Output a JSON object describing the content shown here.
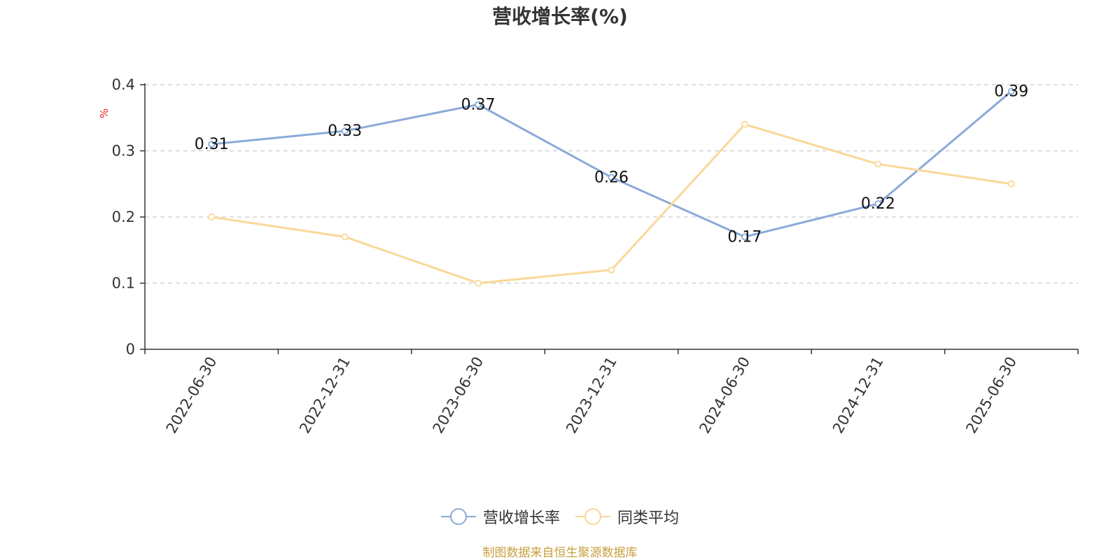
{
  "chart_data": {
    "type": "line",
    "title": "营收增长率(%)",
    "ylabel": "%",
    "xlabel": "",
    "categories": [
      "2022-06-30",
      "2022-12-31",
      "2023-06-30",
      "2023-12-31",
      "2024-06-30",
      "2024-12-31",
      "2025-06-30"
    ],
    "ylim": [
      0,
      0.4
    ],
    "yticks": [
      "0",
      "0.1",
      "0.2",
      "0.3",
      "0.4"
    ],
    "grid": true,
    "legend_position": "bottom",
    "series": [
      {
        "name": "营收增长率",
        "color": "#8aaad8",
        "values": [
          0.31,
          0.33,
          0.37,
          0.26,
          0.17,
          0.22,
          0.39
        ],
        "labels": [
          "0.31",
          "0.33",
          "0.37",
          "0.26",
          "0.17",
          "0.22",
          "0.39"
        ]
      },
      {
        "name": "同类平均",
        "color": "#f9d898",
        "values": [
          0.2,
          0.17,
          0.1,
          0.12,
          0.34,
          0.28,
          0.25
        ]
      }
    ]
  },
  "source": "制图数据来自恒生聚源数据库",
  "colors": {
    "axis": "#333333",
    "grid": "#cccccc",
    "ylabel": "#e02020",
    "source": "#c8a040"
  }
}
